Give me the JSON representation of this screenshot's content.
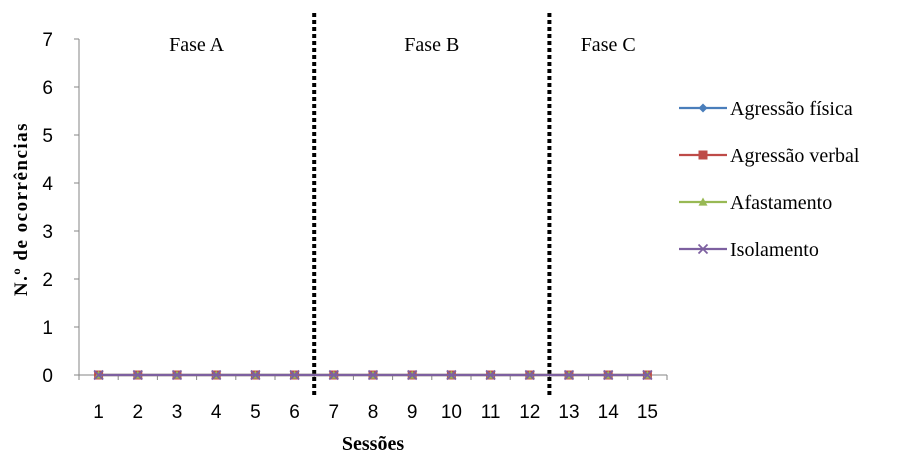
{
  "chart_data": {
    "type": "line",
    "xlabel": "Sessões",
    "ylabel": "N.º de ocorrências",
    "ylim": [
      0,
      7
    ],
    "yticks": [
      "0",
      "1",
      "2",
      "3",
      "4",
      "5",
      "6",
      "7"
    ],
    "categories": [
      "1",
      "2",
      "3",
      "4",
      "5",
      "6",
      "7",
      "8",
      "9",
      "10",
      "11",
      "12",
      "13",
      "14",
      "15"
    ],
    "phases": [
      {
        "label": "Fase A",
        "sessions": [
          "1",
          "6"
        ]
      },
      {
        "label": "Fase B",
        "sessions": [
          "7",
          "12"
        ]
      },
      {
        "label": "Fase C",
        "sessions": [
          "13",
          "15"
        ]
      }
    ],
    "phase_boundaries_after_session": [
      6,
      12
    ],
    "legend_position": "right",
    "grid": false,
    "series": [
      {
        "name": "Agressão física",
        "color": "#4a7ebb",
        "marker": "diamond",
        "values": [
          0,
          0,
          0,
          0,
          0,
          0,
          0,
          0,
          0,
          0,
          0,
          0,
          0,
          0,
          0
        ]
      },
      {
        "name": "Agressão verbal",
        "color": "#be4b48",
        "marker": "square",
        "values": [
          0,
          0,
          0,
          0,
          0,
          0,
          0,
          0,
          0,
          0,
          0,
          0,
          0,
          0,
          0
        ]
      },
      {
        "name": "Afastamento",
        "color": "#98b954",
        "marker": "triangle",
        "values": [
          0,
          0,
          0,
          0,
          0,
          0,
          0,
          0,
          0,
          0,
          0,
          0,
          0,
          0,
          0
        ]
      },
      {
        "name": "Isolamento",
        "color": "#7d60a0",
        "marker": "x",
        "values": [
          0,
          0,
          0,
          0,
          0,
          0,
          0,
          0,
          0,
          0,
          0,
          0,
          0,
          0,
          0
        ]
      }
    ]
  }
}
